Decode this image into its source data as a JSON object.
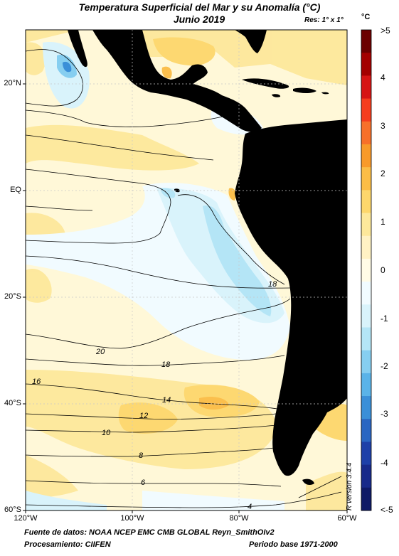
{
  "header": {
    "title": "Temperatura Superficial del Mar y su Anomalía (°C)",
    "subtitle": "Junio 2019",
    "resolution": "Res: 1° x 1°"
  },
  "colorbar": {
    "unit": "°C",
    "labels": [
      ">5",
      "4",
      "3",
      "2",
      "1",
      "0",
      "-1",
      "-2",
      "-3",
      "-4",
      "<-5"
    ],
    "colors": [
      "#6b0000",
      "#a30000",
      "#d61414",
      "#f53d1e",
      "#f7702a",
      "#f89a2a",
      "#fbbd46",
      "#fdd76c",
      "#fde89b",
      "#fff2c4",
      "#fffbe6",
      "#f1fbff",
      "#d9f3fb",
      "#b4e5f6",
      "#86cef0",
      "#5ab3e8",
      "#3a8fd8",
      "#2a66c2",
      "#1e40a8",
      "#182a8a",
      "#0f1a66"
    ]
  },
  "map": {
    "lat_labels": [
      "20°N",
      "EQ",
      "20°S",
      "40°S",
      "60°S"
    ],
    "lon_labels": [
      "120°W",
      "100°W",
      "80°W",
      "60°W"
    ],
    "contour_labels": [
      "18",
      "20",
      "18",
      "16",
      "14",
      "12",
      "10",
      "8",
      "6",
      "4"
    ],
    "land_color": "#000000"
  },
  "footer": {
    "source": "Fuente de datos: NOAA NCEP EMC CMB GLOBAL Reyn_SmithOIv2",
    "processing": "Procesamiento: CIIFEN",
    "base_period": "Periodo base 1971-2000",
    "version": "R version 3.4.4"
  }
}
